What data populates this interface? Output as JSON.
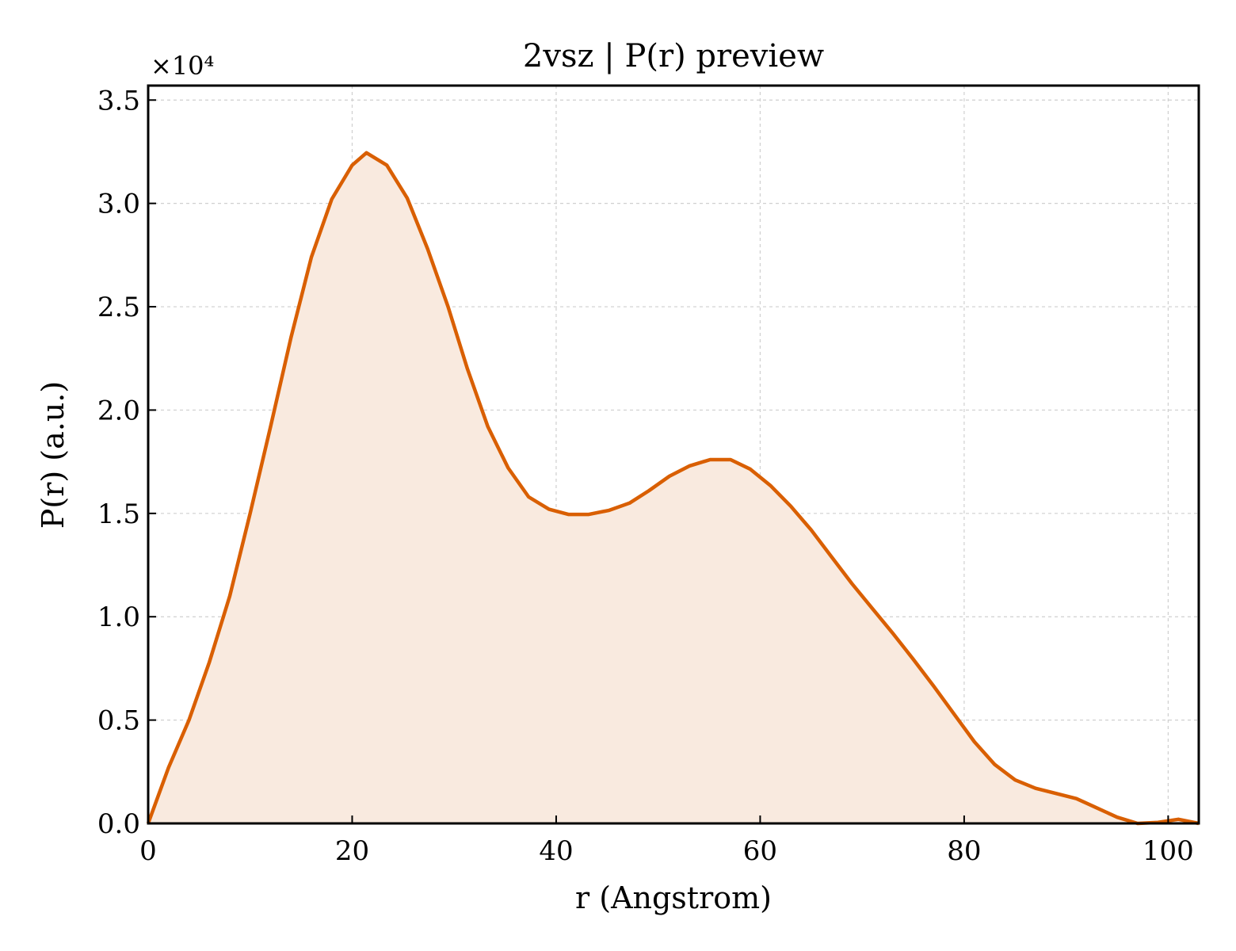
{
  "chart_data": {
    "type": "line",
    "title": "2vsz | P(r) preview",
    "xlabel": "r (Angstrom)",
    "ylabel": "P(r) (a.u.)",
    "y_offset_label": "×10⁴",
    "y_multiplier": 10000,
    "xlim": [
      0,
      103
    ],
    "ylim": [
      0,
      35700
    ],
    "x_ticks": [
      0,
      20,
      40,
      60,
      80,
      100
    ],
    "x_tick_labels": [
      "0",
      "20",
      "40",
      "60",
      "80",
      "100"
    ],
    "y_ticks": [
      0,
      5000,
      10000,
      15000,
      20000,
      25000,
      30000,
      35000
    ],
    "y_tick_labels": [
      "0.0",
      "0.5",
      "1.0",
      "1.5",
      "2.0",
      "2.5",
      "3.0",
      "3.5"
    ],
    "grid": true,
    "fill_under": true,
    "colors": {
      "line": "#d95f02",
      "fill": "#f9eadf",
      "grid": "#cfcfcf",
      "axis": "#000000"
    },
    "series": [
      {
        "x": [
          0,
          2,
          4,
          6,
          8,
          10,
          12,
          14,
          16,
          18,
          20,
          21.4,
          23.4,
          25.4,
          27.4,
          29.4,
          31.3,
          33.3,
          35.3,
          37.3,
          39.3,
          41.2,
          43.2,
          45.2,
          47.2,
          49.1,
          51.1,
          53.1,
          55.1,
          57.1,
          59,
          61,
          63,
          65,
          67,
          69,
          71,
          73,
          75,
          77,
          79,
          81,
          83,
          85,
          87,
          89,
          91,
          93,
          95,
          97,
          99,
          101,
          103
        ],
        "y": [
          0,
          2700,
          5000,
          7800,
          11000,
          15000,
          19200,
          23500,
          27400,
          30200,
          31850,
          32450,
          31850,
          30250,
          27800,
          25000,
          22000,
          19200,
          17200,
          15800,
          15200,
          14950,
          14950,
          15150,
          15500,
          16100,
          16800,
          17300,
          17600,
          17600,
          17150,
          16350,
          15350,
          14200,
          12900,
          11600,
          10400,
          9200,
          7950,
          6650,
          5300,
          3950,
          2850,
          2100,
          1700,
          1450,
          1200,
          750,
          300,
          0,
          50,
          200,
          0
        ]
      }
    ]
  }
}
